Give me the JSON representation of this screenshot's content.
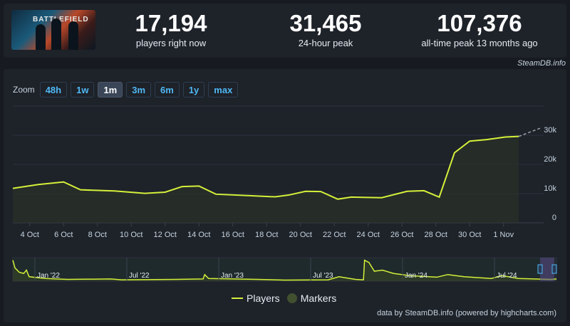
{
  "stats": [
    {
      "value": "17,194",
      "label": "players right now"
    },
    {
      "value": "31,465",
      "label": "24-hour peak"
    },
    {
      "value": "107,376",
      "label": "all-time peak 13 months ago"
    }
  ],
  "thumbnail": {
    "logo_text": "BATTLEFIELD"
  },
  "source_label": "SteamDB.info",
  "zoom": {
    "label": "Zoom",
    "options": [
      "48h",
      "1w",
      "1m",
      "3m",
      "6m",
      "1y",
      "max"
    ],
    "active": "1m"
  },
  "legend": {
    "players": "Players",
    "markers": "Markers"
  },
  "credit": "data by SteamDB.info (powered by highcharts.com)",
  "colors": {
    "line": "#d4f03a",
    "marker": "#41502f",
    "accent": "#4fb8f5"
  },
  "chart_data": {
    "type": "area",
    "x_ticks": [
      "4 Oct",
      "6 Oct",
      "8 Oct",
      "10 Oct",
      "12 Oct",
      "14 Oct",
      "16 Oct",
      "18 Oct",
      "20 Oct",
      "22 Oct",
      "24 Oct",
      "26 Oct",
      "28 Oct",
      "30 Oct",
      "1 Nov"
    ],
    "y_ticks": [
      "0",
      "10k",
      "20k",
      "30k"
    ],
    "ylim": [
      0,
      40000
    ],
    "xlim": [
      3.0,
      34.2
    ],
    "x": [
      3.0,
      4.5,
      6.0,
      7.0,
      9.0,
      10.8,
      12.0,
      13.0,
      14.0,
      15.0,
      17.0,
      18.5,
      19.3,
      20.3,
      21.2,
      22.2,
      23.0,
      24.8,
      26.3,
      27.3,
      28.2,
      29.1,
      30.0,
      31.0,
      32.1,
      32.9
    ],
    "players": [
      11800,
      13100,
      14000,
      11300,
      10900,
      10100,
      10500,
      12400,
      12600,
      9800,
      9300,
      8900,
      9500,
      10800,
      10700,
      8100,
      8800,
      8600,
      10800,
      11000,
      8800,
      24000,
      28000,
      28500,
      29400,
      29600
    ],
    "forecast": {
      "x": [
        32.9,
        34.2
      ],
      "players": [
        29600,
        32500
      ]
    },
    "navigator": {
      "x_ticks": [
        "Jan '22",
        "Jul '22",
        "Jan '23",
        "Jul '23",
        "Jan '24",
        "Jul '24"
      ]
    }
  }
}
